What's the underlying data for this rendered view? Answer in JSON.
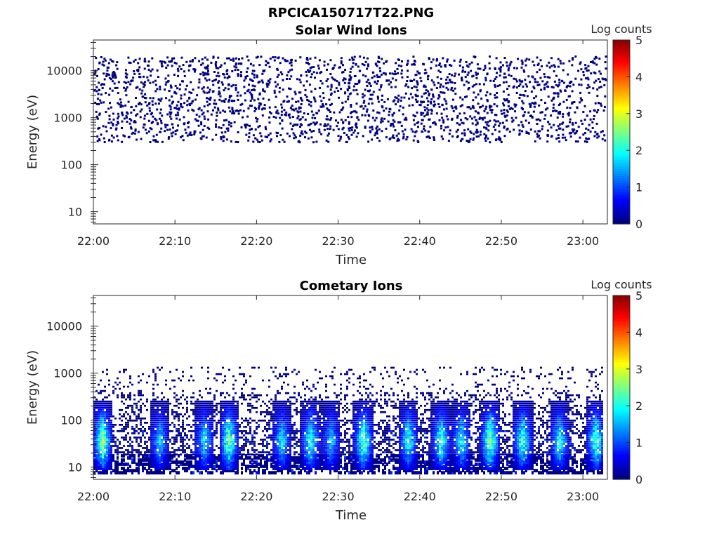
{
  "figure": {
    "title": "RPCICA150717T22.PNG"
  },
  "chart_data": [
    {
      "type": "heatmap",
      "title": "Solar Wind Ions",
      "xlabel": "Time",
      "ylabel": "Energy (eV)",
      "y_scale": "log",
      "xlim_minutes": [
        0,
        63
      ],
      "ylim": [
        5.5,
        45000
      ],
      "x_tick_labels": [
        "22:00",
        "22:10",
        "22:20",
        "22:30",
        "22:40",
        "22:50",
        "23:00"
      ],
      "x_tick_minutes": [
        0,
        10,
        20,
        30,
        40,
        50,
        60
      ],
      "y_ticks": [
        10,
        100,
        1000,
        10000
      ],
      "y_tick_labels": [
        "10",
        "100",
        "1000",
        "10000"
      ],
      "colorbar": {
        "label": "Log counts",
        "min": 0,
        "max": 5,
        "ticks": [
          "0",
          "1",
          "2",
          "3",
          "4",
          "5"
        ]
      },
      "data_description": "Sparse single-count (log counts ~0) events spread uniformly in time from 22:00 to 23:03, energies between ~300 eV and ~20000 eV.",
      "energy_range_eV": [
        300,
        20000
      ],
      "typical_log_counts": 0
    },
    {
      "type": "heatmap",
      "title": "Cometary Ions",
      "xlabel": "Time",
      "ylabel": "Energy (eV)",
      "y_scale": "log",
      "xlim_minutes": [
        0,
        63
      ],
      "ylim": [
        5.5,
        45000
      ],
      "x_tick_labels": [
        "22:00",
        "22:10",
        "22:20",
        "22:30",
        "22:40",
        "22:50",
        "23:00"
      ],
      "x_tick_minutes": [
        0,
        10,
        20,
        30,
        40,
        50,
        60
      ],
      "y_ticks": [
        10,
        100,
        1000,
        10000
      ],
      "y_tick_labels": [
        "10",
        "100",
        "1000",
        "10000"
      ],
      "colorbar": {
        "label": "Log counts",
        "min": 0,
        "max": 5,
        "ticks": [
          "0",
          "1",
          "2",
          "3",
          "4",
          "5"
        ]
      },
      "data_description": "Dense low-energy counts below ~1300 eV with periodic enhancements (log counts up to ~3) between ~10 and ~200 eV.",
      "sparse_energy_range_eV": [
        10,
        1300
      ],
      "burst_times_minutes": [
        1,
        8,
        13.5,
        16.5,
        23,
        26.5,
        29,
        33,
        38.5,
        42.5,
        45,
        48.5,
        52.5,
        57,
        61.5
      ],
      "burst_peak_log_counts": [
        3.0,
        1.8,
        2.0,
        2.8,
        2.0,
        2.4,
        1.8,
        2.8,
        2.3,
        2.5,
        2.2,
        2.9,
        2.6,
        2.3,
        2.6
      ],
      "max_log_counts": 3
    }
  ]
}
